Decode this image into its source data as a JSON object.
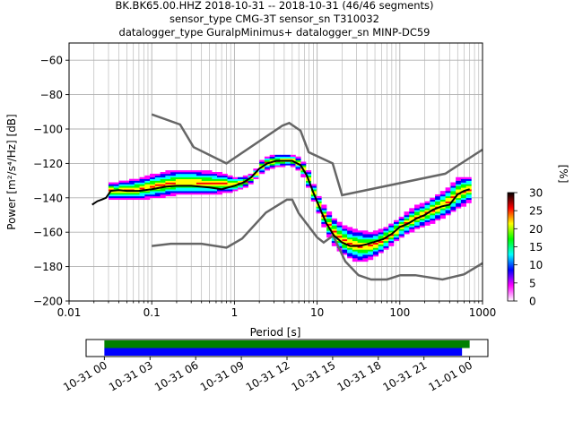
{
  "header": {
    "line1": "BK.BK65.00.HHZ   2018-10-31 -- 2018-10-31  (46/46 segments)",
    "line2": "sensor_type CMG-3T sensor_sn T310032",
    "line3": "datalogger_type GuralpMinimus+ datalogger_sn MINP-DC59"
  },
  "colors": {
    "noise_model": "#666666",
    "mode_line": "#000000",
    "grid": "#b0b0b0",
    "coverage_top": "#008000",
    "coverage_bottom": "#0000ff"
  },
  "chart_data": [
    {
      "type": "heatmap",
      "title": "",
      "xlabel": "Period [s]",
      "ylabel": "Power [m²/s⁴/Hz] [dB]",
      "x_scale": "log",
      "xlim": [
        0.01,
        1000
      ],
      "ylim": [
        -200,
        -50
      ],
      "x_ticks": [
        "0.01",
        "0.1",
        "1",
        "10",
        "100",
        "1000"
      ],
      "y_ticks": [
        "−200",
        "−180",
        "−160",
        "−140",
        "−120",
        "−100",
        "−80",
        "−60"
      ],
      "grid": true,
      "colorbar": {
        "label": "[%]",
        "range": [
          0,
          30
        ],
        "ticks": [
          "0",
          "5",
          "10",
          "15",
          "20",
          "25",
          "30"
        ],
        "colormap": [
          "#ffffff",
          "#ff00ff",
          "#0000ff",
          "#00ffff",
          "#00ff00",
          "#ffff00",
          "#ff0000",
          "#000000"
        ]
      },
      "series": [
        {
          "kind": "noise_model_high",
          "x": [
            0.1,
            0.22,
            0.32,
            0.8,
            3.8,
            4.6,
            6.3,
            7.9,
            15.4,
            20,
            354.8,
            1000
          ],
          "y": [
            -91.5,
            -97.4,
            -110.5,
            -120,
            -98,
            -96.5,
            -101,
            -113.5,
            -120,
            -138.5,
            -126,
            -112
          ]
        },
        {
          "kind": "noise_model_low",
          "x": [
            0.1,
            0.17,
            0.4,
            0.8,
            1.24,
            2.4,
            4.3,
            5,
            6,
            10,
            12,
            15.6,
            21.9,
            31.6,
            45,
            70,
            101,
            154,
            328,
            600,
            1000
          ],
          "y": [
            -168,
            -166.7,
            -166.7,
            -169,
            -163.7,
            -148.6,
            -141.1,
            -141.1,
            -149,
            -163,
            -166,
            -162,
            -177,
            -185,
            -187.5,
            -187.5,
            -185,
            -185,
            -187.5,
            -184.5,
            -178
          ]
        },
        {
          "kind": "mode",
          "x": [
            0.019,
            0.022,
            0.025,
            0.028,
            0.032,
            0.04,
            0.05,
            0.07,
            0.1,
            0.15,
            0.2,
            0.3,
            0.5,
            0.7,
            1.0,
            1.3,
            1.6,
            2.0,
            2.5,
            3.2,
            4.0,
            5.0,
            6.3,
            7.5,
            9.0,
            11,
            13,
            16,
            20,
            25,
            32,
            40,
            50,
            63,
            80,
            100,
            126,
            160,
            200,
            250,
            320,
            400,
            500,
            600,
            700
          ],
          "y": [
            -144,
            -142,
            -141,
            -140,
            -136,
            -135.5,
            -136,
            -136,
            -135,
            -133.5,
            -133,
            -133,
            -134,
            -135,
            -133,
            -131,
            -128,
            -123,
            -120,
            -118.5,
            -118.5,
            -118.5,
            -121,
            -127,
            -137,
            -147,
            -155,
            -162,
            -166,
            -168,
            -168,
            -167,
            -165.5,
            -164,
            -161,
            -157,
            -155,
            -152,
            -150,
            -147,
            -145,
            -144,
            -138,
            -136,
            -135
          ]
        }
      ],
      "density_bands": [
        {
          "x": [
            0.03,
            0.04,
            0.05,
            0.07,
            0.1,
            0.15,
            0.2,
            0.3,
            0.5,
            0.7,
            1.0,
            1.3,
            1.6,
            2.0
          ],
          "y_low": [
            -140,
            -141,
            -141,
            -141,
            -140,
            -139,
            -138,
            -138,
            -138,
            -137,
            -136,
            -134,
            -131,
            -127
          ],
          "y_high": [
            -131,
            -131,
            -130,
            -129,
            -127,
            -125,
            -124,
            -124,
            -125,
            -126,
            -128,
            -128,
            -126,
            -121
          ]
        },
        {
          "x": [
            2.0,
            2.5,
            3.2,
            4.0,
            5.0,
            6.3,
            7.5,
            9.0,
            11,
            13,
            16,
            20,
            25,
            32,
            40,
            50,
            63,
            80,
            100,
            126,
            160,
            200,
            250,
            320,
            400,
            500,
            600,
            700
          ],
          "y_low": [
            -126,
            -123,
            -122,
            -121,
            -121,
            -124,
            -131,
            -141,
            -151,
            -160,
            -167,
            -172,
            -175,
            -177,
            -176,
            -174,
            -171,
            -167,
            -163,
            -160,
            -158,
            -156,
            -154,
            -152,
            -149,
            -146,
            -144,
            -142
          ],
          "y_high": [
            -120,
            -116,
            -115,
            -115,
            -115,
            -117,
            -122,
            -132,
            -142,
            -147,
            -152,
            -156,
            -158,
            -159,
            -160,
            -160,
            -158,
            -155,
            -152,
            -148,
            -145,
            -143,
            -140,
            -137,
            -134,
            -129,
            -128,
            -128
          ]
        }
      ]
    },
    {
      "type": "bar",
      "title": "",
      "x_ticks": [
        "10-31 00",
        "10-31 03",
        "10-31 06",
        "10-31 09",
        "10-31 12",
        "10-31 15",
        "10-31 18",
        "10-31 21",
        "11-01 00"
      ],
      "xlim_hours": [
        -1.2,
        25.2
      ],
      "series": [
        {
          "name": "",
          "color": "#008000",
          "start_hour": 0.0,
          "end_hour": 24.0
        },
        {
          "name": "",
          "color": "#0000ff",
          "start_hour": 0.0,
          "end_hour": 23.5
        }
      ]
    }
  ]
}
